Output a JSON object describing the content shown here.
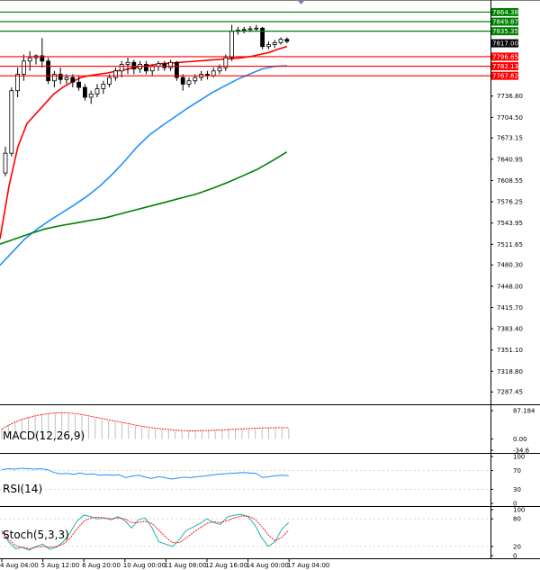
{
  "chart_data": {
    "type": "candlestick",
    "price_axis": {
      "range": [
        7270,
        7880
      ],
      "ticks": [
        "7736.80",
        "7704.50",
        "7673.15",
        "7640.95",
        "7608.55",
        "7576.25",
        "7543.95",
        "7511.65",
        "7480.30",
        "7448.00",
        "7415.70",
        "7383.40",
        "7351.10",
        "7318.80",
        "7287.45"
      ]
    },
    "horizontal_levels": [
      {
        "value": 7864.38,
        "label": "7864.38",
        "color": "#008000"
      },
      {
        "value": 7849.87,
        "label": "7849.87",
        "color": "#008000"
      },
      {
        "value": 7835.35,
        "label": "7835.35",
        "color": "#008000"
      },
      {
        "value": 7796.65,
        "label": "7796.65",
        "color": "#ff0000"
      },
      {
        "value": 7782.13,
        "label": "7782.13",
        "color": "#ff0000"
      },
      {
        "value": 7767.62,
        "label": "7767.62",
        "color": "#ff0000"
      }
    ],
    "current_price": {
      "value": 7817.0,
      "label": "7817.00"
    },
    "candles": [
      {
        "o": 7620,
        "h": 7660,
        "l": 7615,
        "c": 7650
      },
      {
        "o": 7650,
        "h": 7750,
        "l": 7645,
        "c": 7745
      },
      {
        "o": 7745,
        "h": 7780,
        "l": 7735,
        "c": 7770
      },
      {
        "o": 7770,
        "h": 7800,
        "l": 7760,
        "c": 7790
      },
      {
        "o": 7790,
        "h": 7805,
        "l": 7775,
        "c": 7795
      },
      {
        "o": 7795,
        "h": 7800,
        "l": 7785,
        "c": 7798
      },
      {
        "o": 7798,
        "h": 7825,
        "l": 7780,
        "c": 7790
      },
      {
        "o": 7790,
        "h": 7795,
        "l": 7755,
        "c": 7760
      },
      {
        "o": 7760,
        "h": 7775,
        "l": 7750,
        "c": 7770
      },
      {
        "o": 7770,
        "h": 7780,
        "l": 7755,
        "c": 7762
      },
      {
        "o": 7762,
        "h": 7770,
        "l": 7755,
        "c": 7765
      },
      {
        "o": 7765,
        "h": 7770,
        "l": 7750,
        "c": 7758
      },
      {
        "o": 7758,
        "h": 7768,
        "l": 7745,
        "c": 7750
      },
      {
        "o": 7750,
        "h": 7755,
        "l": 7730,
        "c": 7735
      },
      {
        "o": 7735,
        "h": 7745,
        "l": 7725,
        "c": 7740
      },
      {
        "o": 7740,
        "h": 7755,
        "l": 7735,
        "c": 7748
      },
      {
        "o": 7748,
        "h": 7760,
        "l": 7740,
        "c": 7755
      },
      {
        "o": 7755,
        "h": 7770,
        "l": 7750,
        "c": 7765
      },
      {
        "o": 7765,
        "h": 7780,
        "l": 7760,
        "c": 7775
      },
      {
        "o": 7775,
        "h": 7790,
        "l": 7765,
        "c": 7785
      },
      {
        "o": 7785,
        "h": 7795,
        "l": 7770,
        "c": 7788
      },
      {
        "o": 7788,
        "h": 7792,
        "l": 7770,
        "c": 7778
      },
      {
        "o": 7778,
        "h": 7790,
        "l": 7772,
        "c": 7785
      },
      {
        "o": 7785,
        "h": 7790,
        "l": 7770,
        "c": 7775
      },
      {
        "o": 7775,
        "h": 7785,
        "l": 7768,
        "c": 7782
      },
      {
        "o": 7782,
        "h": 7790,
        "l": 7775,
        "c": 7786
      },
      {
        "o": 7786,
        "h": 7790,
        "l": 7775,
        "c": 7780
      },
      {
        "o": 7780,
        "h": 7792,
        "l": 7775,
        "c": 7788
      },
      {
        "o": 7788,
        "h": 7790,
        "l": 7760,
        "c": 7765
      },
      {
        "o": 7765,
        "h": 7770,
        "l": 7745,
        "c": 7755
      },
      {
        "o": 7755,
        "h": 7765,
        "l": 7750,
        "c": 7760
      },
      {
        "o": 7760,
        "h": 7770,
        "l": 7755,
        "c": 7765
      },
      {
        "o": 7765,
        "h": 7775,
        "l": 7760,
        "c": 7770
      },
      {
        "o": 7770,
        "h": 7775,
        "l": 7762,
        "c": 7768
      },
      {
        "o": 7768,
        "h": 7780,
        "l": 7765,
        "c": 7775
      },
      {
        "o": 7775,
        "h": 7785,
        "l": 7770,
        "c": 7780
      },
      {
        "o": 7780,
        "h": 7800,
        "l": 7775,
        "c": 7795
      },
      {
        "o": 7795,
        "h": 7845,
        "l": 7790,
        "c": 7835
      },
      {
        "o": 7835,
        "h": 7842,
        "l": 7830,
        "c": 7837
      },
      {
        "o": 7837,
        "h": 7842,
        "l": 7832,
        "c": 7838
      },
      {
        "o": 7838,
        "h": 7843,
        "l": 7834,
        "c": 7839
      },
      {
        "o": 7839,
        "h": 7845,
        "l": 7835,
        "c": 7840
      },
      {
        "o": 7840,
        "h": 7842,
        "l": 7808,
        "c": 7812
      },
      {
        "o": 7812,
        "h": 7820,
        "l": 7808,
        "c": 7815
      },
      {
        "o": 7815,
        "h": 7822,
        "l": 7810,
        "c": 7818
      },
      {
        "o": 7818,
        "h": 7826,
        "l": 7815,
        "c": 7823
      },
      {
        "o": 7823,
        "h": 7826,
        "l": 7817,
        "c": 7820
      }
    ],
    "moving_averages": [
      {
        "color": "#ff0000",
        "values": [
          7520,
          7600,
          7660,
          7695,
          7710,
          7725,
          7740,
          7750,
          7758,
          7765,
          7768,
          7770,
          7772,
          7775,
          7777,
          7780,
          7782,
          7784,
          7786,
          7787,
          7788,
          7789,
          7790,
          7791,
          7792,
          7793,
          7794,
          7795,
          7797,
          7800,
          7803,
          7808,
          7812
        ]
      },
      {
        "color": "#1e90ff",
        "values": [
          7480,
          7500,
          7520,
          7535,
          7548,
          7560,
          7572,
          7585,
          7600,
          7618,
          7638,
          7660,
          7678,
          7692,
          7705,
          7718,
          7730,
          7742,
          7752,
          7762,
          7770,
          7778,
          7782,
          7783
        ]
      },
      {
        "color": "#008000",
        "values": [
          7512,
          7520,
          7528,
          7535,
          7540,
          7544,
          7548,
          7552,
          7558,
          7564,
          7570,
          7576,
          7582,
          7588,
          7596,
          7605,
          7615,
          7625,
          7638,
          7652
        ]
      }
    ],
    "time_axis": [
      "4 Aug 04:00",
      "5 Aug 12:00",
      "6 Aug 20:00",
      "10 Aug 00:00",
      "11 Aug 08:00",
      "12 Aug 16:00",
      "14 Aug 00:00",
      "17 Aug 04:00"
    ],
    "indicators": [
      {
        "name": "MACD(12,26,9)",
        "ticks": [
          "87.184",
          "0.00",
          "-34.6"
        ],
        "histogram": [
          32,
          44,
          55,
          62,
          68,
          73,
          76,
          79,
          80,
          80,
          78,
          75,
          72,
          68,
          64,
          60,
          56,
          52,
          48,
          44,
          40,
          36,
          33,
          30,
          28,
          26,
          25,
          24,
          24,
          24,
          25,
          26,
          27,
          28,
          29,
          30,
          31,
          32,
          33,
          34,
          35,
          35,
          35,
          35
        ],
        "signal": [
          30,
          42,
          52,
          60,
          66,
          71,
          75,
          78,
          80,
          81,
          80,
          78,
          75,
          71,
          67,
          63,
          59,
          55,
          51,
          47,
          43,
          39,
          36,
          33,
          31,
          29,
          27,
          26,
          25,
          25,
          26,
          26,
          27,
          28,
          29,
          30,
          31,
          32,
          33,
          34,
          34,
          35,
          35,
          35
        ]
      },
      {
        "name": "RSI(14)",
        "ticks": [
          "100",
          "70",
          "30",
          "0"
        ],
        "values": [
          72,
          74,
          73,
          75,
          74,
          73,
          74,
          72,
          66,
          63,
          64,
          62,
          65,
          62,
          63,
          60,
          61,
          60,
          61,
          55,
          58,
          60,
          56,
          53,
          57,
          55,
          52,
          54,
          56,
          55,
          57,
          58,
          60,
          62,
          63,
          64,
          65,
          66,
          65,
          64,
          55,
          57,
          59,
          60,
          59
        ]
      },
      {
        "name": "Stoch(5,3,3)",
        "ticks": [
          "100",
          "80",
          "20",
          "0"
        ],
        "main": [
          55,
          30,
          15,
          18,
          12,
          20,
          25,
          14,
          18,
          30,
          50,
          75,
          88,
          85,
          80,
          82,
          78,
          85,
          76,
          60,
          78,
          82,
          60,
          30,
          25,
          20,
          35,
          55,
          62,
          70,
          80,
          72,
          68,
          84,
          88,
          90,
          85,
          68,
          40,
          20,
          30,
          58,
          72
        ],
        "signal": [
          50,
          35,
          22,
          18,
          15,
          18,
          20,
          18,
          20,
          25,
          38,
          58,
          75,
          82,
          84,
          82,
          80,
          82,
          80,
          72,
          72,
          75,
          70,
          55,
          40,
          28,
          28,
          38,
          50,
          60,
          70,
          74,
          72,
          76,
          82,
          86,
          86,
          80,
          65,
          45,
          32,
          40,
          55
        ]
      }
    ]
  }
}
